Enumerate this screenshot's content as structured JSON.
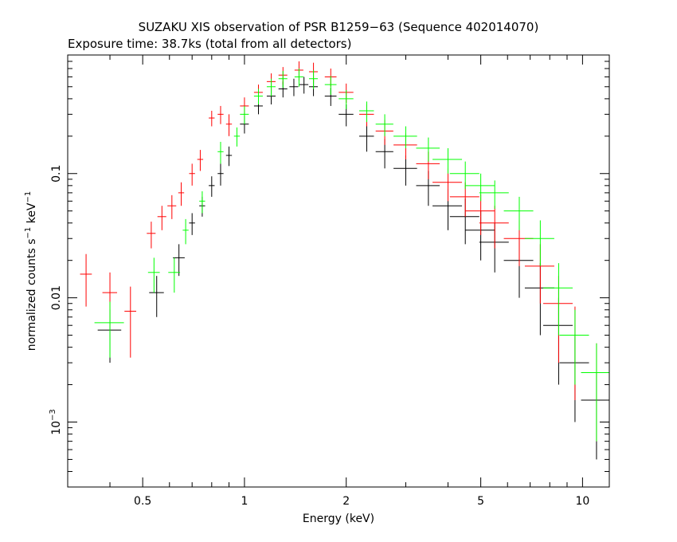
{
  "chart_data": {
    "type": "scatter",
    "title": "SUZAKU XIS observation of PSR B1259−63 (Sequence 402014070)",
    "subtitle": "Exposure time: 38.7ks (total from all detectors)",
    "xlabel": "Energy (keV)",
    "ylabel_main": "normalized counts s",
    "ylabel_sup1": "−1",
    "ylabel_mid": " keV",
    "ylabel_sup2": "−1",
    "xscale": "log",
    "yscale": "log",
    "xlim": [
      0.3,
      12
    ],
    "ylim": [
      0.0003,
      0.9
    ],
    "x_ticks": [
      {
        "value": 0.5,
        "label": "0.5"
      },
      {
        "value": 1,
        "label": "1"
      },
      {
        "value": 2,
        "label": "2"
      },
      {
        "value": 5,
        "label": "5"
      },
      {
        "value": 10,
        "label": "10"
      }
    ],
    "y_ticks": [
      {
        "value": 0.1,
        "label": "0.1",
        "base": "",
        "exp": ""
      },
      {
        "value": 0.01,
        "label": "0.01",
        "base": "",
        "exp": ""
      },
      {
        "value": 0.001,
        "label": "",
        "base": "10",
        "exp": "−3"
      }
    ],
    "series": [
      {
        "color": "#000000",
        "points": [
          [
            0.4,
            0.0055,
            0.08,
            0.0025
          ],
          [
            0.55,
            0.011,
            0.05,
            0.004
          ],
          [
            0.64,
            0.021,
            0.04,
            0.006
          ],
          [
            0.7,
            0.04,
            0.02,
            0.008
          ],
          [
            0.75,
            0.055,
            0.02,
            0.01
          ],
          [
            0.8,
            0.08,
            0.02,
            0.015
          ],
          [
            0.85,
            0.1,
            0.02,
            0.02
          ],
          [
            0.9,
            0.14,
            0.02,
            0.025
          ],
          [
            1.0,
            0.25,
            0.03,
            0.04
          ],
          [
            1.1,
            0.35,
            0.03,
            0.05
          ],
          [
            1.2,
            0.42,
            0.03,
            0.06
          ],
          [
            1.3,
            0.48,
            0.03,
            0.07
          ],
          [
            1.4,
            0.5,
            0.03,
            0.08
          ],
          [
            1.5,
            0.52,
            0.03,
            0.08
          ],
          [
            1.6,
            0.5,
            0.03,
            0.08
          ],
          [
            1.8,
            0.42,
            0.04,
            0.07
          ],
          [
            2.0,
            0.3,
            0.05,
            0.06
          ],
          [
            2.3,
            0.2,
            0.05,
            0.05
          ],
          [
            2.6,
            0.15,
            0.06,
            0.04
          ],
          [
            3.0,
            0.11,
            0.08,
            0.03
          ],
          [
            3.5,
            0.08,
            0.08,
            0.025
          ],
          [
            4.0,
            0.055,
            0.1,
            0.02
          ],
          [
            4.5,
            0.045,
            0.1,
            0.018
          ],
          [
            5.0,
            0.035,
            0.1,
            0.015
          ],
          [
            5.5,
            0.028,
            0.1,
            0.012
          ],
          [
            6.5,
            0.02,
            0.1,
            0.01
          ],
          [
            7.5,
            0.012,
            0.1,
            0.007
          ],
          [
            8.5,
            0.006,
            0.1,
            0.004
          ],
          [
            9.5,
            0.003,
            0.1,
            0.002
          ],
          [
            11.0,
            0.0015,
            0.1,
            0.001
          ]
        ]
      },
      {
        "color": "#ff0000",
        "points": [
          [
            0.34,
            0.0155,
            0.04,
            0.007
          ],
          [
            0.4,
            0.011,
            0.05,
            0.005
          ],
          [
            0.46,
            0.0078,
            0.04,
            0.0045
          ],
          [
            0.53,
            0.033,
            0.03,
            0.008
          ],
          [
            0.57,
            0.045,
            0.03,
            0.01
          ],
          [
            0.61,
            0.055,
            0.03,
            0.012
          ],
          [
            0.65,
            0.07,
            0.02,
            0.015
          ],
          [
            0.7,
            0.1,
            0.02,
            0.02
          ],
          [
            0.74,
            0.13,
            0.02,
            0.025
          ],
          [
            0.8,
            0.28,
            0.02,
            0.04
          ],
          [
            0.85,
            0.3,
            0.02,
            0.05
          ],
          [
            0.9,
            0.25,
            0.02,
            0.05
          ],
          [
            1.0,
            0.35,
            0.03,
            0.06
          ],
          [
            1.1,
            0.45,
            0.03,
            0.07
          ],
          [
            1.2,
            0.55,
            0.03,
            0.09
          ],
          [
            1.3,
            0.62,
            0.03,
            0.1
          ],
          [
            1.45,
            0.68,
            0.03,
            0.12
          ],
          [
            1.6,
            0.66,
            0.03,
            0.12
          ],
          [
            1.8,
            0.6,
            0.04,
            0.1
          ],
          [
            2.0,
            0.45,
            0.05,
            0.08
          ],
          [
            2.3,
            0.3,
            0.05,
            0.06
          ],
          [
            2.6,
            0.22,
            0.06,
            0.05
          ],
          [
            3.0,
            0.17,
            0.08,
            0.04
          ],
          [
            3.5,
            0.12,
            0.08,
            0.03
          ],
          [
            4.0,
            0.085,
            0.1,
            0.025
          ],
          [
            4.5,
            0.065,
            0.1,
            0.02
          ],
          [
            5.0,
            0.05,
            0.1,
            0.018
          ],
          [
            5.5,
            0.04,
            0.1,
            0.015
          ],
          [
            6.5,
            0.03,
            0.1,
            0.012
          ],
          [
            7.5,
            0.018,
            0.1,
            0.009
          ],
          [
            8.5,
            0.009,
            0.1,
            0.006
          ],
          [
            9.5,
            0.005,
            0.1,
            0.0035
          ],
          [
            11.0,
            0.0025,
            0.1,
            0.0018
          ]
        ]
      },
      {
        "color": "#00ff00",
        "points": [
          [
            0.4,
            0.0063,
            0.1,
            0.003
          ],
          [
            0.54,
            0.016,
            0.04,
            0.005
          ],
          [
            0.62,
            0.016,
            0.04,
            0.005
          ],
          [
            0.67,
            0.035,
            0.02,
            0.008
          ],
          [
            0.75,
            0.06,
            0.02,
            0.012
          ],
          [
            0.85,
            0.15,
            0.02,
            0.03
          ],
          [
            0.95,
            0.2,
            0.02,
            0.035
          ],
          [
            1.0,
            0.3,
            0.03,
            0.05
          ],
          [
            1.1,
            0.42,
            0.03,
            0.06
          ],
          [
            1.2,
            0.5,
            0.03,
            0.08
          ],
          [
            1.3,
            0.58,
            0.03,
            0.09
          ],
          [
            1.45,
            0.6,
            0.03,
            0.1
          ],
          [
            1.6,
            0.58,
            0.03,
            0.1
          ],
          [
            1.8,
            0.52,
            0.04,
            0.09
          ],
          [
            2.0,
            0.4,
            0.05,
            0.07
          ],
          [
            2.3,
            0.32,
            0.05,
            0.06
          ],
          [
            2.6,
            0.25,
            0.06,
            0.05
          ],
          [
            3.0,
            0.2,
            0.08,
            0.04
          ],
          [
            3.5,
            0.16,
            0.08,
            0.035
          ],
          [
            4.0,
            0.13,
            0.1,
            0.03
          ],
          [
            4.5,
            0.1,
            0.1,
            0.025
          ],
          [
            5.0,
            0.08,
            0.1,
            0.02
          ],
          [
            5.5,
            0.07,
            0.1,
            0.018
          ],
          [
            6.5,
            0.05,
            0.1,
            0.015
          ],
          [
            7.5,
            0.03,
            0.1,
            0.012
          ],
          [
            8.5,
            0.012,
            0.1,
            0.007
          ],
          [
            9.5,
            0.005,
            0.1,
            0.003
          ],
          [
            11.0,
            0.0025,
            0.1,
            0.0018
          ]
        ]
      }
    ]
  }
}
